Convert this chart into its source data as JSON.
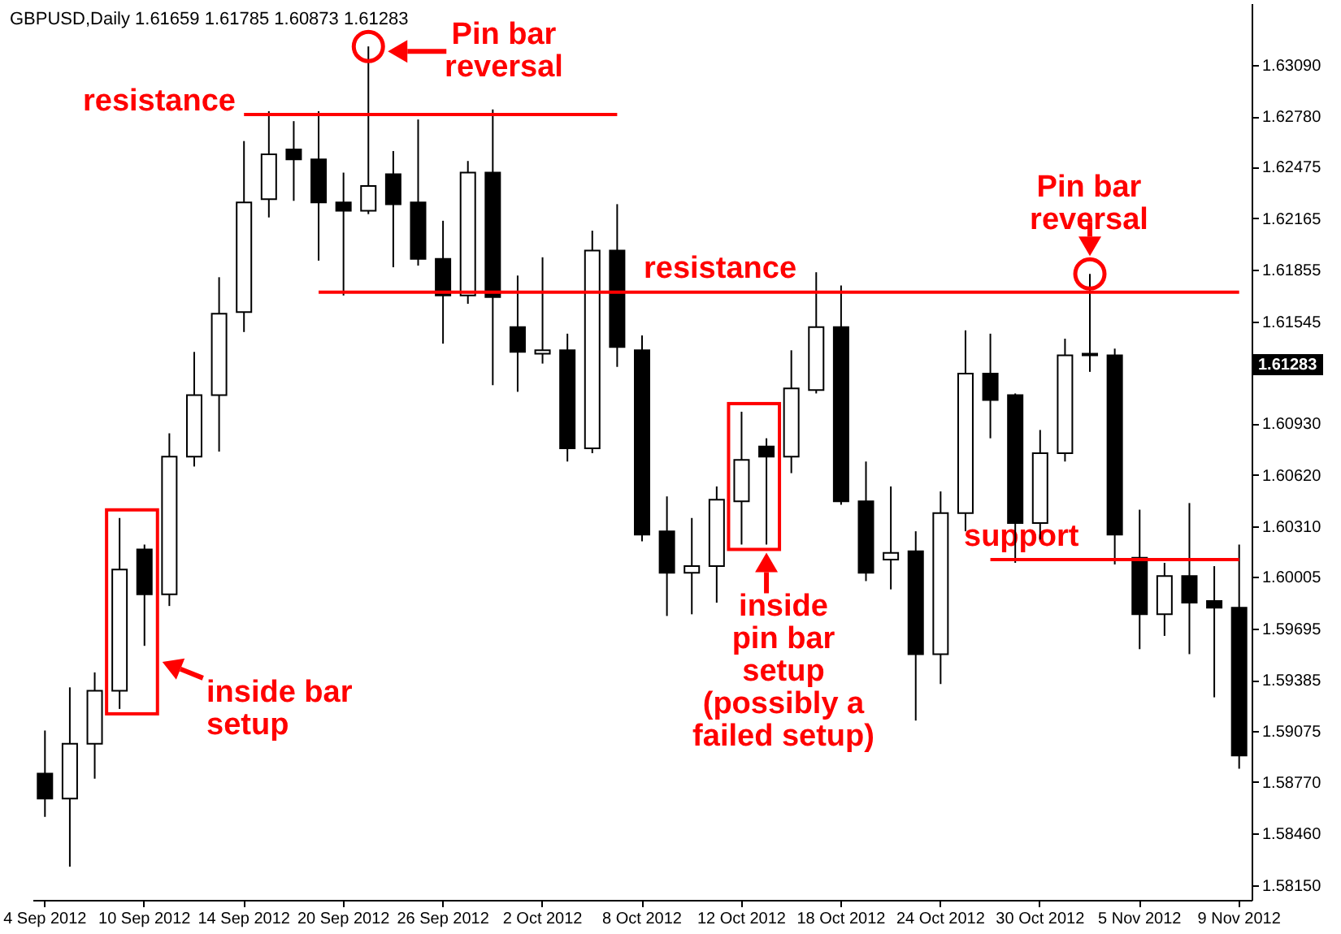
{
  "chart_data": {
    "type": "candlestick",
    "title": "GBPUSD,Daily  1.61659 1.61785 1.60873 1.61283",
    "categories": [
      "4 Sep 2012",
      null,
      null,
      null,
      "10 Sep 2012",
      null,
      null,
      null,
      "14 Sep 2012",
      null,
      null,
      null,
      "20 Sep 2012",
      null,
      null,
      null,
      "26 Sep 2012",
      null,
      null,
      null,
      "2 Oct 2012",
      null,
      null,
      null,
      "8 Oct 2012",
      null,
      null,
      null,
      "12 Oct 2012",
      null,
      null,
      null,
      "18 Oct 2012",
      null,
      null,
      null,
      "24 Oct 2012",
      null,
      null,
      null,
      "30 Oct 2012",
      null,
      null,
      null,
      "5 Nov 2012",
      null,
      null,
      null,
      "9 Nov 2012"
    ],
    "ohlc": [
      [
        1.5882,
        1.5908,
        1.5856,
        1.5867
      ],
      [
        1.5867,
        1.5934,
        1.5826,
        1.59
      ],
      [
        1.59,
        1.5943,
        1.5879,
        1.5932
      ],
      [
        1.5932,
        1.6036,
        1.5921,
        1.6005
      ],
      [
        1.6017,
        1.602,
        1.5959,
        1.599
      ],
      [
        1.599,
        1.6087,
        1.5983,
        1.6073
      ],
      [
        1.6073,
        1.6136,
        1.6067,
        1.611
      ],
      [
        1.611,
        1.6181,
        1.6076,
        1.6159
      ],
      [
        1.616,
        1.6263,
        1.6148,
        1.6226
      ],
      [
        1.6228,
        1.6281,
        1.6217,
        1.6255
      ],
      [
        1.6258,
        1.6275,
        1.6227,
        1.6252
      ],
      [
        1.6252,
        1.6281,
        1.6191,
        1.6226
      ],
      [
        1.6226,
        1.6244,
        1.617,
        1.6221
      ],
      [
        1.6221,
        1.632,
        1.6219,
        1.6236
      ],
      [
        1.6243,
        1.6257,
        1.6187,
        1.6225
      ],
      [
        1.6226,
        1.6276,
        1.6188,
        1.6192
      ],
      [
        1.6192,
        1.6215,
        1.6141,
        1.617
      ],
      [
        1.617,
        1.6251,
        1.6165,
        1.6244
      ],
      [
        1.6244,
        1.6282,
        1.6116,
        1.6169
      ],
      [
        1.6151,
        1.6182,
        1.6112,
        1.6136
      ],
      [
        1.6135,
        1.6193,
        1.6129,
        1.6137
      ],
      [
        1.6137,
        1.6147,
        1.607,
        1.6078
      ],
      [
        1.6078,
        1.6209,
        1.6075,
        1.6197
      ],
      [
        1.6197,
        1.6225,
        1.6127,
        1.6139
      ],
      [
        1.6137,
        1.6146,
        1.6022,
        1.6026
      ],
      [
        1.6028,
        1.6049,
        1.5977,
        1.6003
      ],
      [
        1.6003,
        1.6036,
        1.5978,
        1.6007
      ],
      [
        1.6007,
        1.6055,
        1.5985,
        1.6047
      ],
      [
        1.6046,
        1.61,
        1.602,
        1.6071
      ],
      [
        1.6079,
        1.6084,
        1.602,
        1.6073
      ],
      [
        1.6073,
        1.6137,
        1.6063,
        1.6114
      ],
      [
        1.6113,
        1.6184,
        1.6111,
        1.6151
      ],
      [
        1.6151,
        1.6176,
        1.6044,
        1.6046
      ],
      [
        1.6046,
        1.607,
        1.5998,
        1.6003
      ],
      [
        1.6011,
        1.6055,
        1.5993,
        1.6015
      ],
      [
        1.6016,
        1.6028,
        1.5914,
        1.5954
      ],
      [
        1.5954,
        1.6052,
        1.5936,
        1.6039
      ],
      [
        1.6039,
        1.6149,
        1.6028,
        1.6123
      ],
      [
        1.6123,
        1.6147,
        1.6084,
        1.6107
      ],
      [
        1.611,
        1.6111,
        1.6009,
        1.6033
      ],
      [
        1.6033,
        1.6089,
        1.6023,
        1.6075
      ],
      [
        1.6075,
        1.6144,
        1.607,
        1.6134
      ],
      [
        1.6134,
        1.6183,
        1.6124,
        1.6135
      ],
      [
        1.6134,
        1.6138,
        1.6008,
        1.6026
      ],
      [
        1.6012,
        1.6041,
        1.5957,
        1.5978
      ],
      [
        1.5978,
        1.6009,
        1.5965,
        1.6001
      ],
      [
        1.6001,
        1.6045,
        1.5954,
        1.5985
      ],
      [
        1.5986,
        1.6007,
        1.5928,
        1.5982
      ],
      [
        1.5982,
        1.602,
        1.5885,
        1.5893
      ]
    ],
    "series": [
      {
        "type": "line",
        "name": "resistance",
        "color": "#ff0000",
        "values": [
          null,
          null,
          null,
          null,
          null,
          null,
          null,
          null,
          1.6279,
          1.6279,
          1.6279,
          1.6279,
          1.6279,
          1.6279,
          1.6279,
          1.6279,
          1.6279,
          1.6279,
          1.6279,
          1.6279,
          1.6279,
          1.6279,
          1.6279,
          1.6279,
          null,
          null,
          null,
          null,
          null,
          null,
          null,
          null,
          null,
          null,
          null,
          null,
          null,
          null,
          null,
          null,
          null,
          null,
          null,
          null,
          null,
          null,
          null,
          null,
          null
        ]
      },
      {
        "type": "line",
        "name": "resistance",
        "color": "#ff0000",
        "values": [
          null,
          null,
          null,
          null,
          null,
          null,
          null,
          null,
          null,
          null,
          null,
          1.6172,
          1.6172,
          1.6172,
          1.6172,
          1.6172,
          1.6172,
          1.6172,
          1.6172,
          1.6172,
          1.6172,
          1.6172,
          1.6172,
          1.6172,
          1.6172,
          1.6172,
          1.6172,
          1.6172,
          1.6172,
          1.6172,
          1.6172,
          1.6172,
          1.6172,
          1.6172,
          1.6172,
          1.6172,
          1.6172,
          1.6172,
          1.6172,
          1.6172,
          1.6172,
          1.6172,
          1.6172,
          1.6172,
          1.6172,
          1.6172,
          1.6172,
          1.6172,
          1.6172
        ]
      },
      {
        "type": "line",
        "name": "support",
        "color": "#ff0000",
        "values": [
          null,
          null,
          null,
          null,
          null,
          null,
          null,
          null,
          null,
          null,
          null,
          null,
          null,
          null,
          null,
          null,
          null,
          null,
          null,
          null,
          null,
          null,
          null,
          null,
          null,
          null,
          null,
          null,
          null,
          null,
          null,
          null,
          null,
          null,
          null,
          null,
          null,
          null,
          1.6011,
          1.6011,
          1.6011,
          1.6011,
          1.6011,
          1.6011,
          1.6011,
          1.6011,
          1.6011,
          1.6011,
          1.6011
        ]
      }
    ],
    "ylim": [
      1.5806,
      1.6346
    ],
    "yticks": [
      {
        "value": 1.6309,
        "label": "1.63090"
      },
      {
        "value": 1.6278,
        "label": "1.62780"
      },
      1.62475,
      1.62165,
      1.61855,
      1.61545,
      {
        "value": 1.6124,
        "label": null
      },
      {
        "value": 1.6093,
        "label": "1.60930"
      },
      {
        "value": 1.6062,
        "label": "1.60620"
      },
      {
        "value": 1.6031,
        "label": "1.60310"
      },
      1.60005,
      1.59695,
      1.59385,
      1.59075,
      {
        "value": 1.5877,
        "label": "1.58770"
      },
      {
        "value": 1.5846,
        "label": "1.58460"
      },
      {
        "value": 1.5815,
        "label": "1.58150"
      }
    ],
    "ref_lines": [
      {
        "axis": "y",
        "value": 1.61283,
        "label": "1.61283",
        "color": "#000000"
      }
    ],
    "annotations": [
      "Pin bar\nreversal",
      "inside bar\nsetup",
      "inside\npin bar\nsetup\n(possibly a\nfailed setup)",
      "Pin bar\nreversal"
    ]
  }
}
